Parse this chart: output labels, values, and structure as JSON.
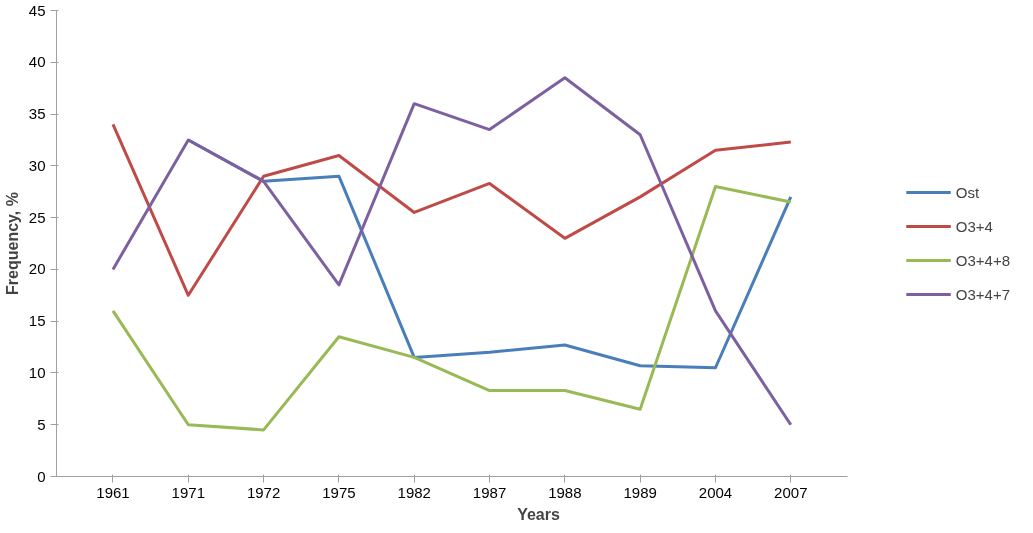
{
  "chart_data": {
    "type": "line",
    "xlabel": "Years",
    "ylabel": "Frequency, %",
    "categories": [
      "1961",
      "1971",
      "1972",
      "1975",
      "1982",
      "1987",
      "1988",
      "1989",
      "2004",
      "2007"
    ],
    "series": [
      {
        "name": "Ost",
        "color": "#4a7ebb",
        "values": [
          null,
          32.5,
          28.5,
          29,
          11.5,
          12,
          12.7,
          10.7,
          10.5,
          27
        ]
      },
      {
        "name": "O3+4",
        "color": "#be4b48",
        "values": [
          34,
          17.5,
          29,
          31,
          25.5,
          28.3,
          23,
          27,
          31.5,
          32.3
        ]
      },
      {
        "name": "O3+4+8",
        "color": "#98b954",
        "values": [
          16,
          5,
          4.5,
          13.5,
          11.5,
          8.3,
          8.3,
          6.5,
          28,
          26.5
        ]
      },
      {
        "name": "O3+4+7",
        "color": "#7d60a0",
        "values": [
          20,
          32.5,
          28.5,
          18.5,
          36,
          33.5,
          38.5,
          33,
          16,
          5
        ]
      }
    ],
    "ylim": [
      0,
      45
    ],
    "yticks": [
      0,
      5,
      10,
      15,
      20,
      25,
      30,
      35,
      40,
      45
    ],
    "grid": false,
    "legend": "right",
    "marker": "none",
    "line_style": "solid"
  }
}
